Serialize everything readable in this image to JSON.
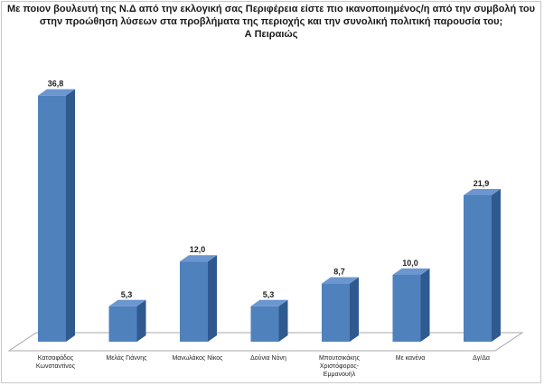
{
  "chart_data": {
    "type": "bar",
    "title_lines": [
      "Με ποιον βουλευτή της Ν.Δ από την εκλογική σας Περιφέρεια είστε πιο ικανοποιημένος/η από την συμβολή του",
      "στην προώθηση λύσεων στα προβλήματα της περιοχής και την συνολική πολιτική παρουσία του;",
      "Α Πειραιώς"
    ],
    "categories": [
      [
        "Κατσαφάδος",
        "Κωνσταντίνος"
      ],
      [
        "Μελάς Γιάννης"
      ],
      [
        "Μανωλάκος Νίκος"
      ],
      [
        "Δούνια Νόνη"
      ],
      [
        "Μπουτσικάκης",
        "Χριστόφορος-",
        "Εμμανουήλ"
      ],
      [
        "Με κανένα"
      ],
      [
        "Δγ/Δα"
      ]
    ],
    "values": [
      36.8,
      5.3,
      12.0,
      5.3,
      8.7,
      10.0,
      21.9
    ],
    "value_labels": [
      "36,8",
      "5,3",
      "12,0",
      "5,3",
      "8,7",
      "10,0",
      "21,9"
    ],
    "ylim": [
      0,
      40
    ],
    "colors": {
      "bar_front": "#4f81bd",
      "bar_side": "#2f5a8f",
      "bar_top": "#6c96cf"
    }
  }
}
